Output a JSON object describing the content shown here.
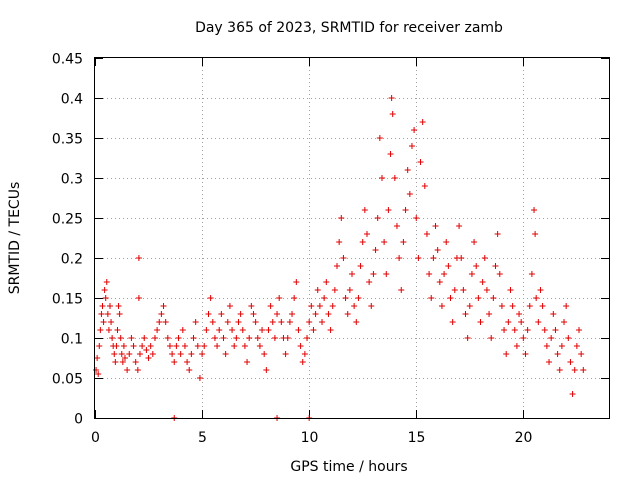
{
  "chart_data": {
    "type": "scatter",
    "title": "Day 365 of 2023, SRMTID for receiver zamb",
    "xlabel": "GPS time / hours",
    "ylabel": "SRMTID / TECUs",
    "xlim": [
      0,
      24
    ],
    "ylim": [
      0,
      0.45
    ],
    "xticks": [
      "0",
      "5",
      "10",
      "15",
      "20"
    ],
    "yticks": [
      "0",
      "0.05",
      "0.1",
      "0.15",
      "0.2",
      "0.25",
      "0.3",
      "0.35",
      "0.4",
      "0.45"
    ],
    "grid": true,
    "marker": "+",
    "color": "#e00000",
    "series": [
      {
        "name": "SRMTID",
        "points": [
          [
            0.05,
            0.06
          ],
          [
            0.1,
            0.075
          ],
          [
            0.15,
            0.055
          ],
          [
            0.2,
            0.09
          ],
          [
            0.25,
            0.11
          ],
          [
            0.3,
            0.13
          ],
          [
            0.35,
            0.14
          ],
          [
            0.4,
            0.12
          ],
          [
            0.45,
            0.16
          ],
          [
            0.5,
            0.15
          ],
          [
            0.55,
            0.17
          ],
          [
            0.6,
            0.13
          ],
          [
            0.65,
            0.11
          ],
          [
            0.7,
            0.14
          ],
          [
            0.75,
            0.12
          ],
          [
            0.8,
            0.1
          ],
          [
            0.85,
            0.09
          ],
          [
            0.9,
            0.08
          ],
          [
            0.95,
            0.07
          ],
          [
            1.0,
            0.09
          ],
          [
            1.05,
            0.11
          ],
          [
            1.1,
            0.14
          ],
          [
            1.15,
            0.13
          ],
          [
            1.2,
            0.1
          ],
          [
            1.25,
            0.08
          ],
          [
            1.3,
            0.07
          ],
          [
            1.35,
            0.09
          ],
          [
            1.4,
            0.075
          ],
          [
            1.5,
            0.06
          ],
          [
            1.6,
            0.08
          ],
          [
            1.7,
            0.1
          ],
          [
            1.8,
            0.09
          ],
          [
            1.9,
            0.07
          ],
          [
            2.0,
            0.06
          ],
          [
            2.05,
            0.2
          ],
          [
            2.05,
            0.15
          ],
          [
            2.1,
            0.08
          ],
          [
            2.2,
            0.09
          ],
          [
            2.3,
            0.1
          ],
          [
            2.4,
            0.085
          ],
          [
            2.5,
            0.075
          ],
          [
            2.6,
            0.09
          ],
          [
            2.7,
            0.08
          ],
          [
            2.8,
            0.1
          ],
          [
            2.9,
            0.11
          ],
          [
            3.0,
            0.12
          ],
          [
            3.1,
            0.13
          ],
          [
            3.2,
            0.14
          ],
          [
            3.3,
            0.12
          ],
          [
            3.4,
            0.1
          ],
          [
            3.5,
            0.09
          ],
          [
            3.6,
            0.08
          ],
          [
            3.7,
            0.0
          ],
          [
            3.7,
            0.07
          ],
          [
            3.8,
            0.09
          ],
          [
            3.9,
            0.1
          ],
          [
            4.0,
            0.08
          ],
          [
            4.1,
            0.11
          ],
          [
            4.2,
            0.09
          ],
          [
            4.3,
            0.07
          ],
          [
            4.4,
            0.06
          ],
          [
            4.5,
            0.08
          ],
          [
            4.6,
            0.1
          ],
          [
            4.7,
            0.12
          ],
          [
            4.8,
            0.09
          ],
          [
            4.9,
            0.05
          ],
          [
            5.0,
            0.08
          ],
          [
            5.1,
            0.09
          ],
          [
            5.2,
            0.11
          ],
          [
            5.3,
            0.13
          ],
          [
            5.4,
            0.15
          ],
          [
            5.5,
            0.12
          ],
          [
            5.6,
            0.1
          ],
          [
            5.7,
            0.09
          ],
          [
            5.8,
            0.11
          ],
          [
            5.9,
            0.13
          ],
          [
            6.0,
            0.1
          ],
          [
            6.1,
            0.08
          ],
          [
            6.2,
            0.12
          ],
          [
            6.3,
            0.14
          ],
          [
            6.4,
            0.11
          ],
          [
            6.5,
            0.09
          ],
          [
            6.6,
            0.1
          ],
          [
            6.7,
            0.12
          ],
          [
            6.8,
            0.13
          ],
          [
            6.9,
            0.11
          ],
          [
            7.0,
            0.09
          ],
          [
            7.1,
            0.07
          ],
          [
            7.2,
            0.1
          ],
          [
            7.3,
            0.14
          ],
          [
            7.4,
            0.13
          ],
          [
            7.5,
            0.12
          ],
          [
            7.6,
            0.1
          ],
          [
            7.7,
            0.09
          ],
          [
            7.8,
            0.11
          ],
          [
            7.9,
            0.08
          ],
          [
            8.0,
            0.06
          ],
          [
            8.1,
            0.11
          ],
          [
            8.2,
            0.14
          ],
          [
            8.3,
            0.12
          ],
          [
            8.4,
            0.1
          ],
          [
            8.5,
            0.0
          ],
          [
            8.5,
            0.13
          ],
          [
            8.6,
            0.15
          ],
          [
            8.7,
            0.12
          ],
          [
            8.8,
            0.1
          ],
          [
            8.9,
            0.08
          ],
          [
            9.0,
            0.1
          ],
          [
            9.1,
            0.12
          ],
          [
            9.2,
            0.13
          ],
          [
            9.3,
            0.15
          ],
          [
            9.4,
            0.17
          ],
          [
            9.5,
            0.11
          ],
          [
            9.6,
            0.09
          ],
          [
            9.7,
            0.07
          ],
          [
            9.8,
            0.08
          ],
          [
            9.9,
            0.1
          ],
          [
            10.0,
            0.0
          ],
          [
            10.0,
            0.12
          ],
          [
            10.1,
            0.14
          ],
          [
            10.2,
            0.11
          ],
          [
            10.3,
            0.13
          ],
          [
            10.4,
            0.16
          ],
          [
            10.5,
            0.14
          ],
          [
            10.6,
            0.12
          ],
          [
            10.7,
            0.15
          ],
          [
            10.8,
            0.17
          ],
          [
            10.9,
            0.13
          ],
          [
            11.0,
            0.11
          ],
          [
            11.1,
            0.14
          ],
          [
            11.2,
            0.16
          ],
          [
            11.3,
            0.19
          ],
          [
            11.4,
            0.22
          ],
          [
            11.5,
            0.25
          ],
          [
            11.6,
            0.2
          ],
          [
            11.7,
            0.15
          ],
          [
            11.8,
            0.13
          ],
          [
            11.9,
            0.16
          ],
          [
            12.0,
            0.18
          ],
          [
            12.1,
            0.14
          ],
          [
            12.2,
            0.12
          ],
          [
            12.3,
            0.15
          ],
          [
            12.4,
            0.19
          ],
          [
            12.5,
            0.22
          ],
          [
            12.6,
            0.26
          ],
          [
            12.7,
            0.23
          ],
          [
            12.8,
            0.17
          ],
          [
            12.9,
            0.14
          ],
          [
            13.0,
            0.18
          ],
          [
            13.1,
            0.21
          ],
          [
            13.2,
            0.25
          ],
          [
            13.3,
            0.35
          ],
          [
            13.4,
            0.3
          ],
          [
            13.5,
            0.22
          ],
          [
            13.6,
            0.18
          ],
          [
            13.7,
            0.26
          ],
          [
            13.8,
            0.33
          ],
          [
            13.85,
            0.4
          ],
          [
            13.9,
            0.38
          ],
          [
            14.0,
            0.3
          ],
          [
            14.1,
            0.24
          ],
          [
            14.2,
            0.2
          ],
          [
            14.3,
            0.16
          ],
          [
            14.4,
            0.22
          ],
          [
            14.5,
            0.26
          ],
          [
            14.6,
            0.31
          ],
          [
            14.7,
            0.28
          ],
          [
            14.8,
            0.34
          ],
          [
            14.9,
            0.36
          ],
          [
            15.0,
            0.25
          ],
          [
            15.1,
            0.2
          ],
          [
            15.2,
            0.32
          ],
          [
            15.3,
            0.37
          ],
          [
            15.4,
            0.29
          ],
          [
            15.5,
            0.23
          ],
          [
            15.6,
            0.18
          ],
          [
            15.7,
            0.15
          ],
          [
            15.8,
            0.2
          ],
          [
            15.9,
            0.24
          ],
          [
            16.0,
            0.21
          ],
          [
            16.1,
            0.17
          ],
          [
            16.2,
            0.14
          ],
          [
            16.3,
            0.18
          ],
          [
            16.4,
            0.22
          ],
          [
            16.5,
            0.19
          ],
          [
            16.6,
            0.15
          ],
          [
            16.7,
            0.12
          ],
          [
            16.8,
            0.16
          ],
          [
            16.9,
            0.2
          ],
          [
            17.0,
            0.24
          ],
          [
            17.1,
            0.2
          ],
          [
            17.2,
            0.16
          ],
          [
            17.3,
            0.13
          ],
          [
            17.4,
            0.1
          ],
          [
            17.5,
            0.14
          ],
          [
            17.6,
            0.18
          ],
          [
            17.7,
            0.22
          ],
          [
            17.8,
            0.19
          ],
          [
            17.9,
            0.15
          ],
          [
            18.0,
            0.12
          ],
          [
            18.1,
            0.17
          ],
          [
            18.2,
            0.2
          ],
          [
            18.3,
            0.16
          ],
          [
            18.4,
            0.13
          ],
          [
            18.5,
            0.1
          ],
          [
            18.6,
            0.15
          ],
          [
            18.7,
            0.19
          ],
          [
            18.8,
            0.23
          ],
          [
            18.9,
            0.18
          ],
          [
            19.0,
            0.14
          ],
          [
            19.1,
            0.11
          ],
          [
            19.2,
            0.08
          ],
          [
            19.3,
            0.12
          ],
          [
            19.4,
            0.16
          ],
          [
            19.5,
            0.14
          ],
          [
            19.6,
            0.11
          ],
          [
            19.7,
            0.09
          ],
          [
            19.8,
            0.13
          ],
          [
            19.9,
            0.12
          ],
          [
            20.0,
            0.1
          ],
          [
            20.1,
            0.08
          ],
          [
            20.2,
            0.11
          ],
          [
            20.3,
            0.14
          ],
          [
            20.4,
            0.18
          ],
          [
            20.5,
            0.26
          ],
          [
            20.55,
            0.23
          ],
          [
            20.6,
            0.15
          ],
          [
            20.7,
            0.12
          ],
          [
            20.8,
            0.16
          ],
          [
            20.9,
            0.14
          ],
          [
            21.0,
            0.11
          ],
          [
            21.1,
            0.09
          ],
          [
            21.2,
            0.07
          ],
          [
            21.3,
            0.1
          ],
          [
            21.4,
            0.13
          ],
          [
            21.5,
            0.11
          ],
          [
            21.6,
            0.08
          ],
          [
            21.7,
            0.06
          ],
          [
            21.8,
            0.09
          ],
          [
            21.9,
            0.12
          ],
          [
            22.0,
            0.14
          ],
          [
            22.1,
            0.1
          ],
          [
            22.2,
            0.07
          ],
          [
            22.3,
            0.03
          ],
          [
            22.4,
            0.06
          ],
          [
            22.5,
            0.09
          ],
          [
            22.6,
            0.11
          ],
          [
            22.7,
            0.08
          ],
          [
            22.8,
            0.06
          ]
        ]
      }
    ]
  }
}
